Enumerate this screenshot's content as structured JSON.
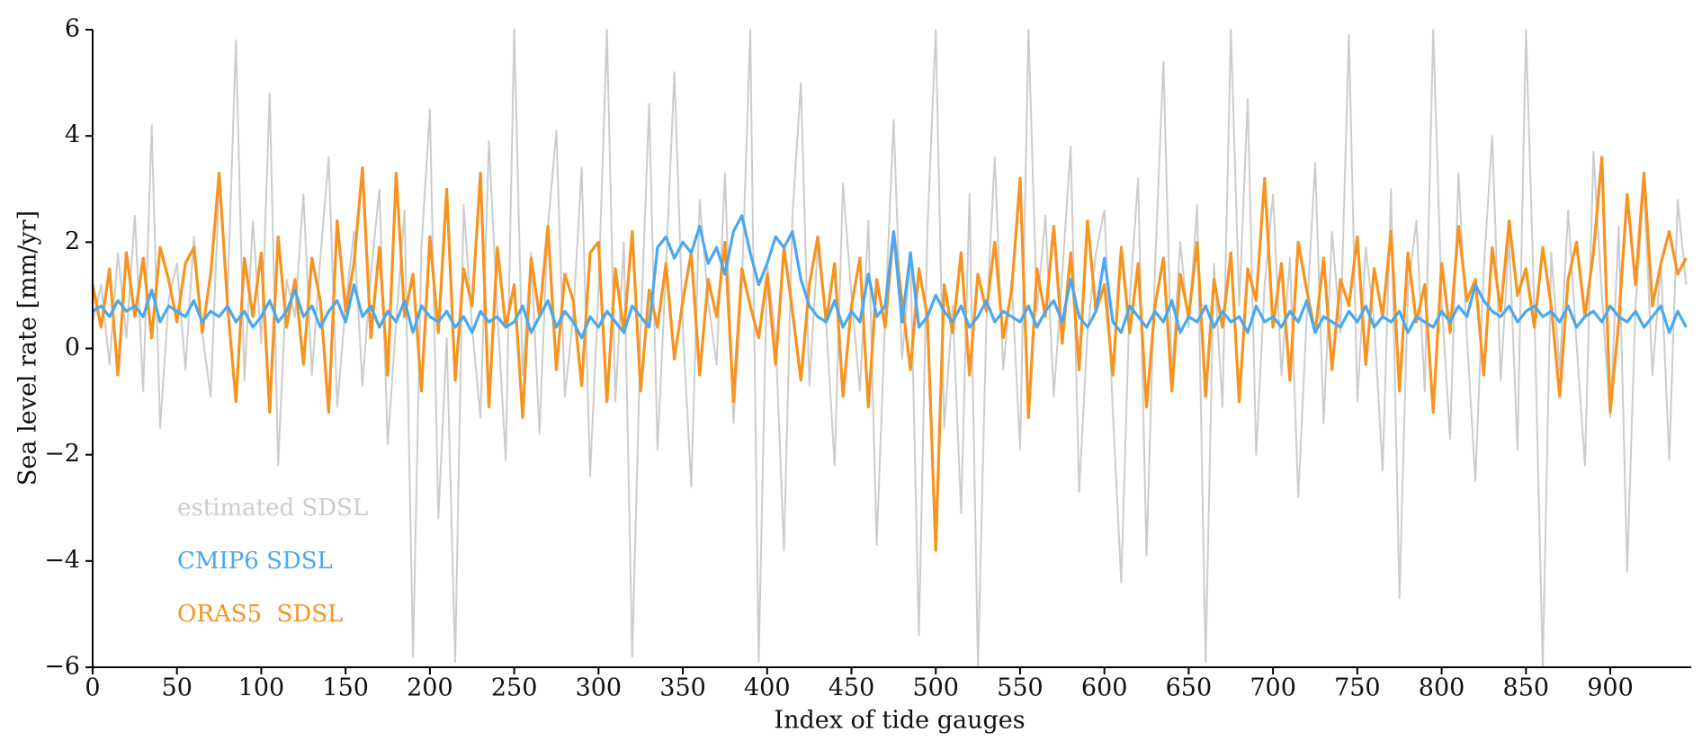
{
  "chart_data": {
    "type": "line",
    "xlabel": "Index of tide gauges",
    "ylabel": "Sea level rate [mm/yr]",
    "xlim": [
      0,
      948
    ],
    "ylim": [
      -6,
      6
    ],
    "xticks": [
      0,
      50,
      100,
      150,
      200,
      250,
      300,
      350,
      400,
      450,
      500,
      550,
      600,
      650,
      700,
      750,
      800,
      850,
      900
    ],
    "yticks": [
      {
        "value": -6,
        "label": "−6"
      },
      {
        "value": -4,
        "label": "−4"
      },
      {
        "value": -2,
        "label": "−2"
      },
      0,
      2,
      4,
      6
    ],
    "legend": "lower left",
    "x": [
      0,
      5,
      10,
      15,
      20,
      25,
      30,
      35,
      40,
      45,
      50,
      55,
      60,
      65,
      70,
      75,
      80,
      85,
      90,
      95,
      100,
      105,
      110,
      115,
      120,
      125,
      130,
      135,
      140,
      145,
      150,
      155,
      160,
      165,
      170,
      175,
      180,
      185,
      190,
      195,
      200,
      205,
      210,
      215,
      220,
      225,
      230,
      235,
      240,
      245,
      250,
      255,
      260,
      265,
      270,
      275,
      280,
      285,
      290,
      295,
      300,
      305,
      310,
      315,
      320,
      325,
      330,
      335,
      340,
      345,
      350,
      355,
      360,
      365,
      370,
      375,
      380,
      385,
      390,
      395,
      400,
      405,
      410,
      415,
      420,
      425,
      430,
      435,
      440,
      445,
      450,
      455,
      460,
      465,
      470,
      475,
      480,
      485,
      490,
      495,
      500,
      505,
      510,
      515,
      520,
      525,
      530,
      535,
      540,
      545,
      550,
      555,
      560,
      565,
      570,
      575,
      580,
      585,
      590,
      595,
      600,
      605,
      610,
      615,
      620,
      625,
      630,
      635,
      640,
      645,
      650,
      655,
      660,
      665,
      670,
      675,
      680,
      685,
      690,
      695,
      700,
      705,
      710,
      715,
      720,
      725,
      730,
      735,
      740,
      745,
      750,
      755,
      760,
      765,
      770,
      775,
      780,
      785,
      790,
      795,
      800,
      805,
      810,
      815,
      820,
      825,
      830,
      835,
      840,
      845,
      850,
      855,
      860,
      865,
      870,
      875,
      880,
      885,
      890,
      895,
      900,
      905,
      910,
      915,
      920,
      925,
      930,
      935,
      940,
      945
    ],
    "series": [
      {
        "name": "estimated SDSL",
        "color": "#cccccc",
        "values": [
          0.5,
          1.2,
          -0.3,
          1.8,
          0.2,
          2.5,
          -0.8,
          4.2,
          -1.5,
          0.9,
          1.6,
          -0.4,
          2.1,
          0.3,
          -0.9,
          3.1,
          1.0,
          5.8,
          -0.6,
          2.4,
          0.1,
          4.8,
          -2.2,
          1.3,
          0.6,
          2.9,
          -0.5,
          1.7,
          3.6,
          -1.1,
          0.8,
          2.2,
          -0.7,
          1.4,
          3.0,
          -1.8,
          0.5,
          2.6,
          -5.8,
          1.9,
          4.5,
          -3.2,
          0.2,
          -5.9,
          2.7,
          0.4,
          -1.3,
          3.9,
          0.7,
          -2.1,
          6.0,
          -0.5,
          1.8,
          -1.6,
          2.3,
          4.1,
          -0.9,
          0.6,
          3.4,
          -2.4,
          1.1,
          6.0,
          -1.0,
          2.0,
          -5.8,
          0.3,
          4.6,
          -1.9,
          1.5,
          5.2,
          0.4,
          -2.6,
          2.8,
          0.9,
          -0.3,
          3.3,
          -1.4,
          1.2,
          6.0,
          -5.9,
          1.6,
          0.2,
          -3.8,
          2.5,
          5.0,
          -0.7,
          1.9,
          0.5,
          -2.2,
          3.1,
          1.0,
          -0.8,
          2.4,
          -3.7,
          0.6,
          4.3,
          -0.2,
          1.7,
          -5.4,
          2.2,
          6.0,
          -1.5,
          0.8,
          -3.1,
          2.9,
          -6.0,
          0.5,
          3.6,
          -0.4,
          1.3,
          -1.9,
          6.0,
          0.7,
          2.5,
          -0.9,
          1.4,
          3.8,
          -2.7,
          0.3,
          1.8,
          2.6,
          -1.2,
          -4.4,
          0.9,
          3.2,
          -3.9,
          1.5,
          5.4,
          -0.6,
          2.0,
          0.4,
          2.7,
          -5.9,
          1.6,
          -1.1,
          6.0,
          0.8,
          4.7,
          -2.0,
          1.2,
          2.9,
          -0.5,
          1.7,
          -2.8,
          0.6,
          3.5,
          -1.4,
          2.2,
          0.3,
          5.9,
          -1.0,
          1.9,
          0.5,
          -2.3,
          3.0,
          -4.7,
          1.1,
          2.4,
          -0.8,
          6.0,
          0.9,
          -1.7,
          3.3,
          0.2,
          -2.5,
          1.5,
          4.0,
          -0.6,
          2.1,
          -1.9,
          6.0,
          0.7,
          -6.0,
          1.8,
          -0.4,
          2.6,
          0.1,
          -2.2,
          3.7,
          1.0,
          -1.3,
          2.3,
          -4.2,
          0.8,
          3.1,
          -0.5,
          1.6,
          -2.1,
          2.8,
          1.2
        ]
      },
      {
        "name": "ORAS5  SDSL",
        "color": "#f7931e",
        "values": [
          1.2,
          0.4,
          1.5,
          -0.5,
          1.8,
          0.6,
          1.7,
          0.2,
          1.9,
          1.3,
          0.5,
          1.6,
          1.9,
          0.3,
          1.4,
          3.3,
          0.8,
          -1.0,
          1.7,
          0.6,
          1.8,
          -1.2,
          2.1,
          0.4,
          1.3,
          -0.3,
          1.7,
          0.9,
          -1.2,
          2.4,
          0.7,
          1.6,
          3.4,
          0.2,
          1.9,
          -0.5,
          3.3,
          0.6,
          1.4,
          -0.8,
          2.1,
          0.3,
          3.0,
          -0.6,
          1.5,
          0.8,
          3.3,
          -1.1,
          1.9,
          0.4,
          1.2,
          -1.3,
          1.7,
          0.6,
          2.3,
          -0.4,
          1.4,
          0.9,
          -0.7,
          1.8,
          2.0,
          -1.0,
          1.5,
          0.3,
          2.2,
          -0.8,
          1.1,
          0.4,
          1.6,
          -0.2,
          0.9,
          1.8,
          -0.5,
          1.3,
          0.6,
          2.0,
          -1.0,
          1.5,
          0.8,
          0.2,
          1.4,
          -0.3,
          1.9,
          0.7,
          -0.6,
          1.2,
          2.1,
          0.5,
          1.6,
          -0.9,
          0.8,
          1.7,
          -1.1,
          1.3,
          0.4,
          2.2,
          0.9,
          -0.4,
          1.5,
          0.6,
          -3.8,
          1.2,
          0.3,
          1.8,
          -0.5,
          1.4,
          0.7,
          2.0,
          0.2,
          1.1,
          3.2,
          -1.3,
          1.5,
          0.6,
          2.3,
          0.1,
          1.8,
          -0.4,
          2.4,
          0.7,
          1.2,
          -0.5,
          1.9,
          0.3,
          1.6,
          -1.1,
          0.8,
          1.7,
          -0.8,
          1.4,
          0.6,
          2.0,
          -0.9,
          1.3,
          0.4,
          1.8,
          -1.0,
          1.5,
          0.9,
          3.2,
          0.4,
          1.6,
          -0.6,
          2.0,
          1.1,
          0.3,
          1.7,
          -0.4,
          1.3,
          0.8,
          2.1,
          -0.3,
          1.5,
          0.6,
          2.2,
          -0.8,
          1.8,
          0.5,
          1.2,
          -1.2,
          1.6,
          0.3,
          2.3,
          0.9,
          1.3,
          -0.5,
          1.9,
          0.7,
          2.4,
          1.0,
          1.5,
          0.4,
          1.9,
          0.8,
          -0.9,
          1.3,
          2.0,
          0.6,
          1.8,
          3.6,
          -1.2,
          0.5,
          2.9,
          1.2,
          3.3,
          0.8,
          1.6,
          2.2,
          1.4,
          1.7
        ]
      },
      {
        "name": "CMIP6 SDSL",
        "color": "#4aa8f0",
        "values": [
          0.7,
          0.8,
          0.6,
          0.9,
          0.7,
          0.8,
          0.6,
          1.1,
          0.5,
          0.8,
          0.7,
          0.6,
          0.9,
          0.5,
          0.7,
          0.6,
          0.8,
          0.5,
          0.7,
          0.4,
          0.6,
          0.9,
          0.5,
          0.7,
          1.1,
          0.6,
          0.8,
          0.4,
          0.7,
          0.9,
          0.5,
          1.2,
          0.6,
          0.8,
          0.4,
          0.7,
          0.5,
          0.9,
          0.3,
          0.8,
          0.6,
          0.5,
          0.7,
          0.4,
          0.6,
          0.3,
          0.7,
          0.5,
          0.6,
          0.4,
          0.5,
          0.8,
          0.3,
          0.6,
          0.9,
          0.4,
          0.7,
          0.5,
          0.2,
          0.6,
          0.4,
          0.7,
          0.5,
          0.3,
          0.8,
          0.6,
          0.4,
          1.9,
          2.1,
          1.7,
          2.0,
          1.8,
          2.3,
          1.6,
          1.9,
          1.4,
          2.2,
          2.5,
          1.8,
          1.2,
          1.6,
          2.1,
          1.9,
          2.2,
          1.3,
          0.8,
          0.6,
          0.5,
          0.9,
          0.4,
          0.7,
          0.5,
          1.4,
          0.6,
          0.8,
          2.2,
          0.5,
          1.8,
          0.4,
          0.6,
          1.0,
          0.7,
          0.5,
          0.8,
          0.4,
          0.6,
          0.9,
          0.5,
          0.7,
          0.6,
          0.5,
          0.8,
          0.4,
          0.7,
          0.9,
          0.5,
          1.3,
          0.6,
          0.4,
          0.7,
          1.7,
          0.5,
          0.3,
          0.8,
          0.6,
          0.4,
          0.7,
          0.5,
          0.9,
          0.3,
          0.6,
          0.5,
          0.8,
          0.4,
          0.7,
          0.5,
          0.6,
          0.3,
          0.8,
          0.5,
          0.6,
          0.4,
          0.7,
          0.5,
          0.9,
          0.3,
          0.6,
          0.5,
          0.4,
          0.7,
          0.5,
          0.8,
          0.4,
          0.6,
          0.5,
          0.7,
          0.3,
          0.6,
          0.5,
          0.4,
          0.7,
          0.5,
          0.8,
          0.6,
          1.2,
          0.9,
          0.7,
          0.6,
          0.8,
          0.5,
          0.7,
          0.8,
          0.6,
          0.7,
          0.5,
          0.8,
          0.4,
          0.6,
          0.7,
          0.5,
          0.8,
          0.6,
          0.5,
          0.7,
          0.4,
          0.6,
          0.8,
          0.3,
          0.7,
          0.4
        ]
      }
    ]
  }
}
